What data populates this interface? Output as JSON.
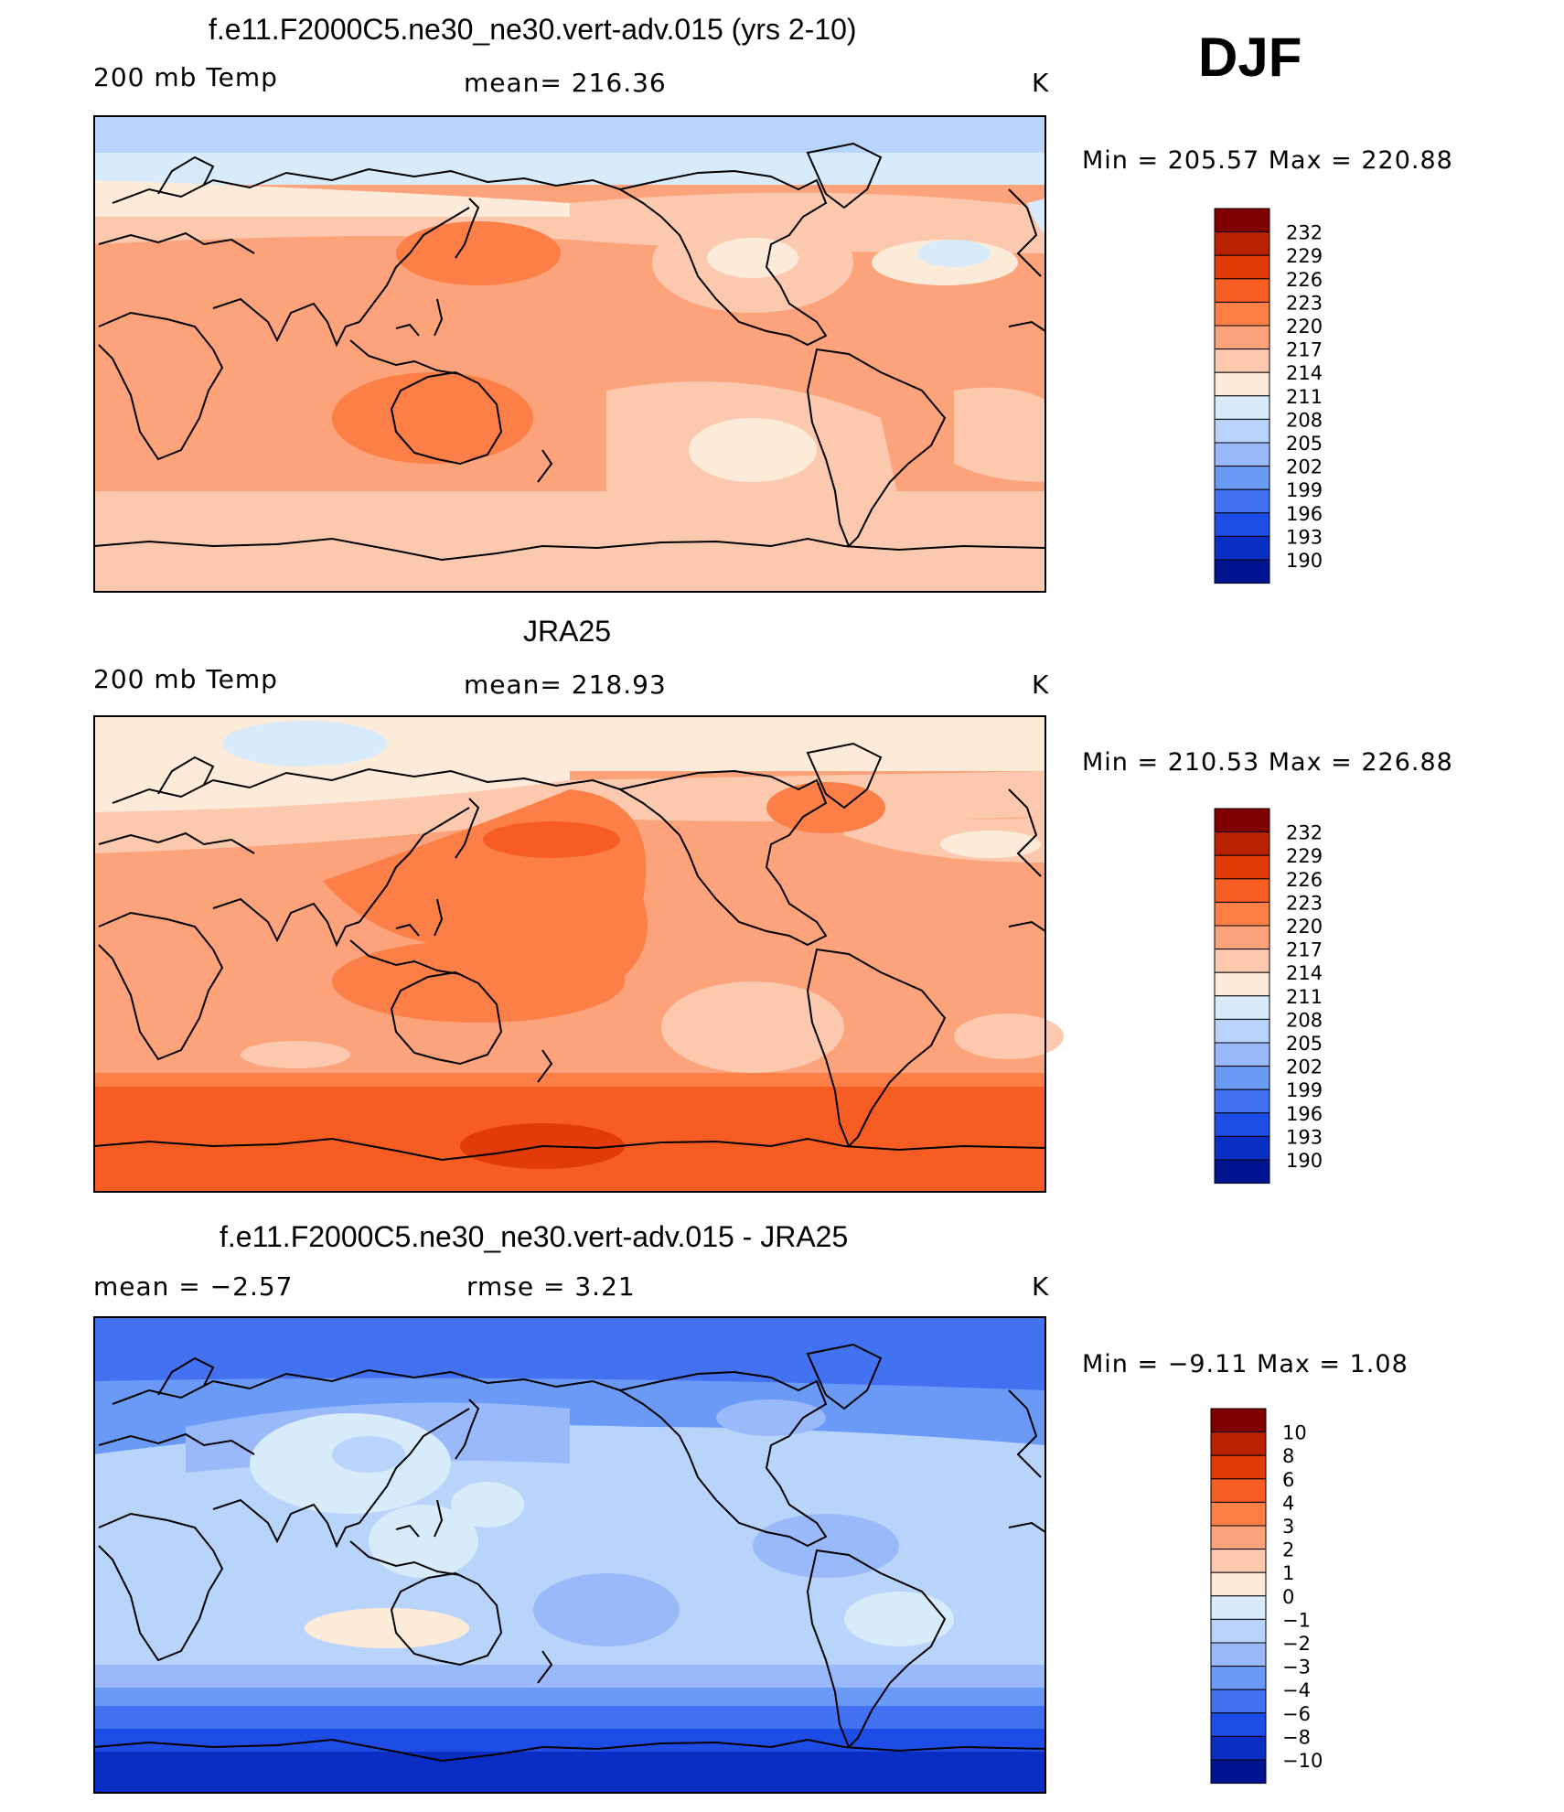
{
  "season": "DJF",
  "panels": [
    {
      "title": "f.e11.F2000C5.ne30_ne30.vert-adv.015 (yrs 2-10)",
      "left_label": "200 mb Temp",
      "center_label": "mean=  216.36",
      "units": "K",
      "min_max": "Min  =  205.57  Max  =  220.88",
      "colorbar_levels": [
        "232",
        "229",
        "226",
        "223",
        "220",
        "217",
        "214",
        "211",
        "208",
        "205",
        "202",
        "199",
        "196",
        "193",
        "190"
      ]
    },
    {
      "title": "JRA25",
      "left_label": "200 mb Temp",
      "center_label": "mean=  218.93",
      "units": "K",
      "min_max": "Min  =  210.53  Max  =  226.88",
      "colorbar_levels": [
        "232",
        "229",
        "226",
        "223",
        "220",
        "217",
        "214",
        "211",
        "208",
        "205",
        "202",
        "199",
        "196",
        "193",
        "190"
      ]
    },
    {
      "title": "f.e11.F2000C5.ne30_ne30.vert-adv.015 - JRA25",
      "left_label": "mean =     −2.57",
      "center_label": "rmse =      3.21",
      "units": "K",
      "min_max": "Min  =     −9.11  Max  =      1.08",
      "colorbar_levels": [
        "10",
        "8",
        "6",
        "4",
        "3",
        "2",
        "1",
        "0",
        "−1",
        "−2",
        "−3",
        "−4",
        "−6",
        "−8",
        "−10"
      ]
    }
  ],
  "colors": {
    "palette": [
      "#800000",
      "#B82203",
      "#E13C08",
      "#F75D22",
      "#FB7F46",
      "#FDA37B",
      "#FCC8AE",
      "#FDEBDA",
      "#D7EBFB",
      "#B8D4FB",
      "#99B9FB",
      "#6A9AF6",
      "#4271F1",
      "#1D4CE7",
      "#0A2DC4",
      "#00148F"
    ]
  }
}
